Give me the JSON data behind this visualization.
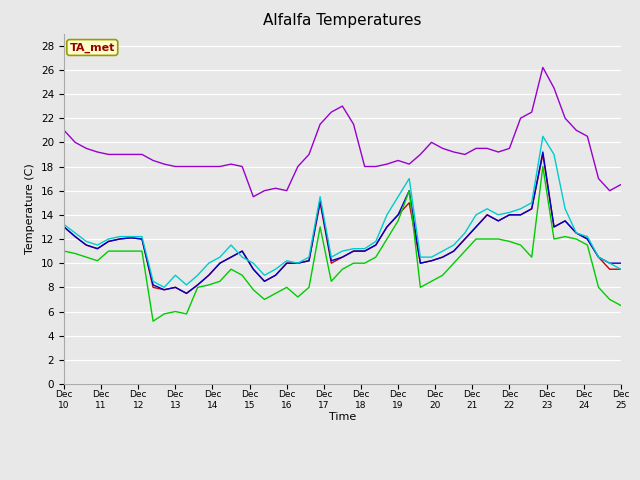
{
  "title": "Alfalfa Temperatures",
  "xlabel": "Time",
  "ylabel": "Temperature (C)",
  "annotation_text": "TA_met",
  "background_color": "#e8e8e8",
  "ylim": [
    0,
    29
  ],
  "yticks": [
    0,
    2,
    4,
    6,
    8,
    10,
    12,
    14,
    16,
    18,
    20,
    22,
    24,
    26,
    28
  ],
  "x_labels": [
    "Dec\n10",
    "Dec\n11",
    "Dec\n12",
    "Dec\n13",
    "Dec\n14",
    "Dec\n15",
    "Dec\n16",
    "Dec\n17",
    "Dec\n18",
    "Dec\n19",
    "Dec\n20",
    "Dec\n21",
    "Dec\n22",
    "Dec\n23",
    "Dec\n24",
    "Dec\n25"
  ],
  "colors": {
    "PanelT": "#cc0000",
    "HMP60": "#0000cc",
    "NR01_PRT": "#00cc00",
    "SonicT": "#9900cc",
    "AM25T_PRT": "#00cccc"
  },
  "series": {
    "PanelT": [
      13.0,
      12.2,
      11.5,
      11.2,
      11.8,
      12.0,
      12.1,
      12.0,
      8.0,
      7.8,
      8.0,
      7.5,
      8.2,
      9.0,
      10.0,
      10.5,
      11.0,
      9.5,
      8.5,
      9.0,
      10.0,
      10.0,
      10.2,
      15.0,
      10.0,
      10.5,
      11.0,
      11.0,
      11.5,
      13.0,
      14.0,
      15.0,
      10.0,
      10.2,
      10.5,
      11.0,
      12.0,
      13.0,
      14.0,
      13.5,
      14.0,
      14.0,
      14.5,
      19.0,
      13.0,
      13.5,
      12.5,
      12.0,
      10.5,
      9.5,
      9.5
    ],
    "HMP60": [
      13.0,
      12.2,
      11.5,
      11.2,
      11.8,
      12.0,
      12.1,
      12.0,
      8.2,
      7.8,
      8.0,
      7.5,
      8.2,
      9.0,
      10.0,
      10.5,
      11.0,
      9.5,
      8.5,
      9.0,
      10.0,
      10.0,
      10.2,
      15.2,
      10.2,
      10.5,
      11.0,
      11.0,
      11.5,
      13.0,
      14.0,
      16.0,
      10.0,
      10.2,
      10.5,
      11.0,
      12.0,
      13.0,
      14.0,
      13.5,
      14.0,
      14.0,
      14.5,
      19.2,
      13.0,
      13.5,
      12.5,
      12.0,
      10.5,
      10.0,
      10.0
    ],
    "NR01_PRT": [
      11.0,
      10.8,
      10.5,
      10.2,
      11.0,
      11.0,
      11.0,
      11.0,
      5.2,
      5.8,
      6.0,
      5.8,
      8.0,
      8.2,
      8.5,
      9.5,
      9.0,
      7.8,
      7.0,
      7.5,
      8.0,
      7.2,
      8.0,
      13.0,
      8.5,
      9.5,
      10.0,
      10.0,
      10.5,
      12.0,
      13.5,
      16.0,
      8.0,
      8.5,
      9.0,
      10.0,
      11.0,
      12.0,
      12.0,
      12.0,
      11.8,
      11.5,
      10.5,
      18.0,
      12.0,
      12.2,
      12.0,
      11.5,
      8.0,
      7.0,
      6.5
    ],
    "SonicT": [
      21.0,
      20.0,
      19.5,
      19.2,
      19.0,
      19.0,
      19.0,
      19.0,
      18.5,
      18.2,
      18.0,
      18.0,
      18.0,
      18.0,
      18.0,
      18.2,
      18.0,
      15.5,
      16.0,
      16.2,
      16.0,
      18.0,
      19.0,
      21.5,
      22.5,
      23.0,
      21.5,
      18.0,
      18.0,
      18.2,
      18.5,
      18.2,
      19.0,
      20.0,
      19.5,
      19.2,
      19.0,
      19.5,
      19.5,
      19.2,
      19.5,
      22.0,
      22.5,
      26.2,
      24.5,
      22.0,
      21.0,
      20.5,
      17.0,
      16.0,
      16.5
    ],
    "AM25T_PRT": [
      13.2,
      12.5,
      11.8,
      11.5,
      12.0,
      12.2,
      12.2,
      12.2,
      8.5,
      8.0,
      9.0,
      8.2,
      9.0,
      10.0,
      10.5,
      11.5,
      10.5,
      10.0,
      9.0,
      9.5,
      10.2,
      10.0,
      10.5,
      15.5,
      10.5,
      11.0,
      11.2,
      11.2,
      11.8,
      14.0,
      15.5,
      17.0,
      10.5,
      10.5,
      11.0,
      11.5,
      12.5,
      14.0,
      14.5,
      14.0,
      14.2,
      14.5,
      15.0,
      20.5,
      19.0,
      14.5,
      12.5,
      12.2,
      10.5,
      10.0,
      9.5
    ]
  },
  "figsize": [
    6.4,
    4.8
  ],
  "dpi": 100
}
